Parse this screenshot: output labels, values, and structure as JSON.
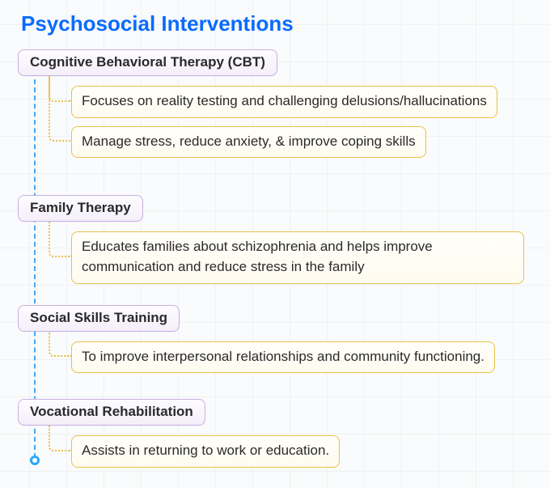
{
  "title": {
    "text": "Psychosocial Interventions",
    "color": "#0a6bff",
    "fontsize": 26
  },
  "background": {
    "grid_color": "#eef1f4",
    "grid_size": 46,
    "bg_color": "#fafbfc"
  },
  "timeline": {
    "color": "#3fa9ff",
    "end_ring_color": "#2aa8ff"
  },
  "category_style": {
    "border_color": "#c8aee4",
    "bg_top": "#fdfcff",
    "bg_bottom": "#f4effa",
    "text_color": "#2a2a2a",
    "fontsize": 17,
    "radius": 8
  },
  "child_style": {
    "border_color": "#e8c14a",
    "bg_top": "#fffef9",
    "bg_bottom": "#fffbf0",
    "text_color": "#2a2a2a",
    "fontsize": 17,
    "radius": 8,
    "connector_color": "#e8c14a"
  },
  "sections": [
    {
      "label": "Cognitive Behavioral Therapy (CBT)",
      "children": [
        "Focuses on reality testing and challenging delusions/hallucinations",
        "Manage stress, reduce anxiety, & improve coping skills"
      ],
      "gap_after": 26
    },
    {
      "label": "Family Therapy",
      "children": [
        "Educates families about schizophrenia and helps improve communication and reduce stress in the family"
      ],
      "gap_after": 6
    },
    {
      "label": "Social Skills Training",
      "children": [
        "To improve interpersonal relationships and community functioning."
      ],
      "gap_after": 12
    },
    {
      "label": "Vocational Rehabilitation",
      "children": [
        "Assists in returning to work or education."
      ],
      "gap_after": 0
    }
  ]
}
